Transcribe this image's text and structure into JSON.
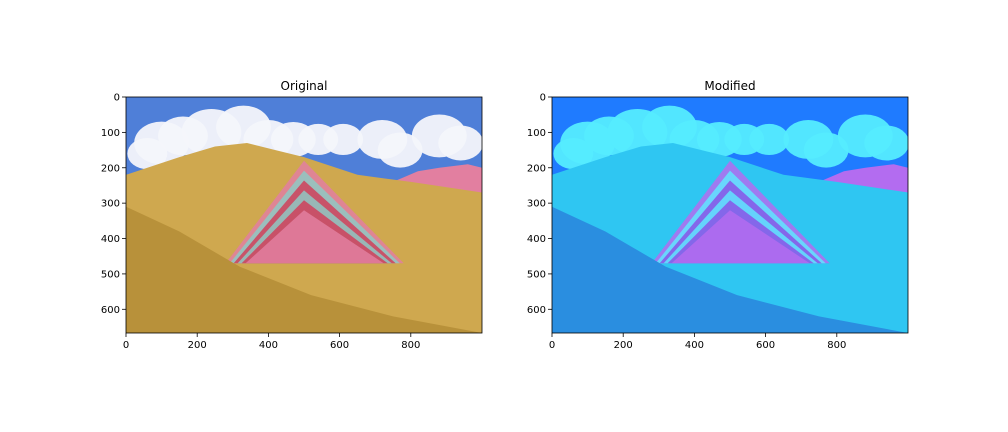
{
  "chart_data": [
    {
      "type": "image",
      "title": "Original",
      "xlim": [
        0,
        1000
      ],
      "ylim": [
        667,
        0
      ],
      "xticks": [
        0,
        200,
        400,
        600,
        800
      ],
      "yticks": [
        0,
        100,
        200,
        300,
        400,
        500,
        600
      ],
      "palette": {
        "sky": "#4f7fd8",
        "cloud": "#f4f6fb",
        "mountain_gold": "#cfa84f",
        "stripe_red": "#d0405a",
        "stripe_teal": "#8fc9c4",
        "stripe_pink": "#e27fa0",
        "foreground": "#b8913a"
      }
    },
    {
      "type": "image",
      "title": "Modified",
      "xlim": [
        0,
        1000
      ],
      "ylim": [
        667,
        0
      ],
      "xticks": [
        0,
        200,
        400,
        600,
        800
      ],
      "yticks": [
        0,
        100,
        200,
        300,
        400,
        500,
        600
      ],
      "palette": {
        "sky": "#1f7bff",
        "cloud": "#55ecff",
        "mountain_gold": "#2fc6f2",
        "stripe_red": "#8a54e6",
        "stripe_teal": "#5fe6ff",
        "stripe_pink": "#b36cf0",
        "foreground": "#2a8ee0"
      }
    }
  ]
}
